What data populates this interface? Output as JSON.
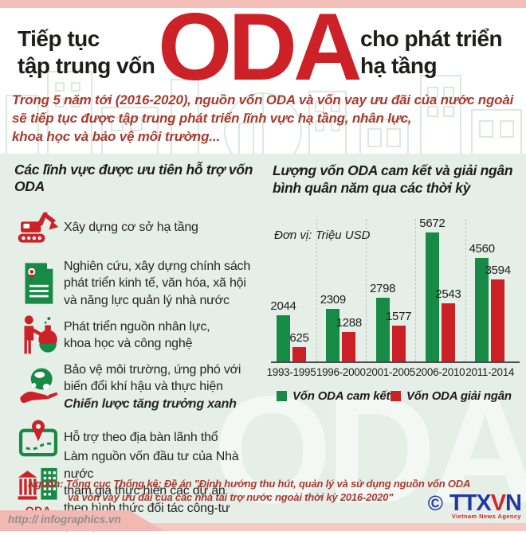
{
  "header": {
    "title_left_line1": "Tiếp tục",
    "title_left_line2": "tập trung vốn",
    "title_center": "ODA",
    "title_right_line1": "cho phát triển",
    "title_right_line2": "hạ tầng",
    "intro": "Trong 5 năm tới (2016-2020), nguồn vốn ODA và vốn vay ưu đãi của nước ngoài\nsẽ tiếp tục được tập trung phát triển lĩnh vực hạ tầng, nhân lực,\nkhoa học và bảo vệ môi trường..."
  },
  "sectors": {
    "heading": "Các lĩnh vực được ưu tiên hỗ trợ vốn ODA",
    "items": [
      {
        "icon": "excavator-icon",
        "text": "Xây dựng cơ sở hạ tầng"
      },
      {
        "icon": "certificate-icon",
        "text": "Nghiên cứu, xây dựng chính sách\nphát triển kinh tế, văn hóa, xã hội\nvà năng lực quản lý nhà nước"
      },
      {
        "icon": "researcher-flask-icon",
        "text": "Phát triển nguồn nhân lực,\nkhoa học và công nghệ"
      },
      {
        "icon": "globe-hand-icon",
        "text": "Bảo vệ môi trường, ứng phó với\nbiến đổi khí hậu và thực hiện",
        "emphasis": "Chiến lược tăng trưởng xanh"
      },
      {
        "icon": "map-pin-icon",
        "text": "Hỗ trợ theo địa bàn lãnh thổ"
      },
      {
        "icon": "buildings-oda-icon",
        "icon_label": "ODA",
        "text": "Làm nguồn vốn đầu tư của Nhà nước\ntham gia thực hiện các dự án\ntheo hình thức đối tác công-tư (PPP)"
      }
    ]
  },
  "chart_data": {
    "type": "bar",
    "title": "Lượng vốn ODA cam kết và giải ngân\nbình quân năm qua các thời kỳ",
    "unit_label": "Đơn vị: Triệu USD",
    "categories": [
      "1993-1995",
      "1996-2000",
      "2001-2005",
      "2006-2010",
      "2011-2014"
    ],
    "series": [
      {
        "name": "Vốn ODA cam kết",
        "color": "#178a45",
        "values": [
          2044,
          2309,
          2798,
          5672,
          4560
        ]
      },
      {
        "name": "Vốn ODA giải ngân",
        "color": "#cb2026",
        "values": [
          625,
          1288,
          1577,
          2543,
          3594
        ]
      }
    ],
    "ylabel": "Triệu USD",
    "ylim": [
      0,
      6200
    ],
    "grid": "vertical-dashed",
    "legend_position": "bottom",
    "value_labels": true
  },
  "watermark": "ODA",
  "footer": {
    "source_line1": "Nguồn: Tổng cục Thống kê; Đề án \"Định hướng thu hút, quản lý và sử dụng nguồn vốn ODA",
    "source_line2": "và vốn vay ưu đãi của các nhà tài trợ nước ngoài thời kỳ 2016-2020\"",
    "url": "http:// infographics.vn",
    "agency_copyright": "©",
    "agency_logo": "TTXVN",
    "agency_name": "Vietnam News Agency"
  },
  "colors": {
    "accent_red": "#cc2127",
    "dark_red_text": "#a93a2f",
    "green": "#178a45",
    "bar_red": "#cb2026",
    "mint_background": "#e5efe7",
    "pink_band": "#f4bfb9",
    "logo_blue": "#2238a0"
  }
}
